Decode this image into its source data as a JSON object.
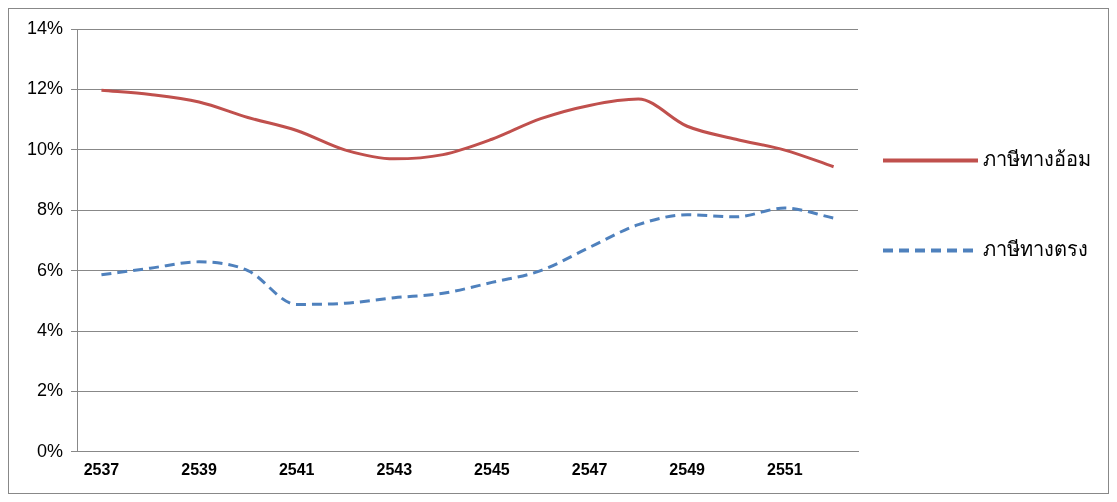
{
  "chart_data": {
    "type": "line",
    "categories": [
      "2537",
      null,
      "2539",
      null,
      "2541",
      null,
      "2543",
      null,
      "2545",
      null,
      "2547",
      null,
      "2549",
      null,
      "2551",
      null
    ],
    "series": [
      {
        "name": "ภาษีทางอ้อม",
        "color": "#c0504d",
        "line_style": "solid",
        "values": [
          11.97,
          11.83,
          11.58,
          11.07,
          10.64,
          9.99,
          9.7,
          9.84,
          10.35,
          11.03,
          11.47,
          11.68,
          10.78,
          10.35,
          9.99,
          9.44
        ]
      },
      {
        "name": "ภาษีทางตรง",
        "color": "#4f81bd",
        "line_style": "dashed",
        "values": [
          5.86,
          6.08,
          6.29,
          6.0,
          4.88,
          4.92,
          5.1,
          5.25,
          5.61,
          6.0,
          6.77,
          7.52,
          7.85,
          7.78,
          8.07,
          7.74
        ]
      }
    ],
    "ylim": [
      0,
      14
    ],
    "yticks": [
      {
        "value": 0,
        "label": "0%"
      },
      {
        "value": 2,
        "label": "2%"
      },
      {
        "value": 4,
        "label": "4%"
      },
      {
        "value": 6,
        "label": "6%"
      },
      {
        "value": 8,
        "label": "8%"
      },
      {
        "value": 10,
        "label": "10%"
      },
      {
        "value": 12,
        "label": "12%"
      },
      {
        "value": 14,
        "label": "14%"
      }
    ],
    "grid": "y",
    "legend": "right",
    "marker": "none"
  }
}
